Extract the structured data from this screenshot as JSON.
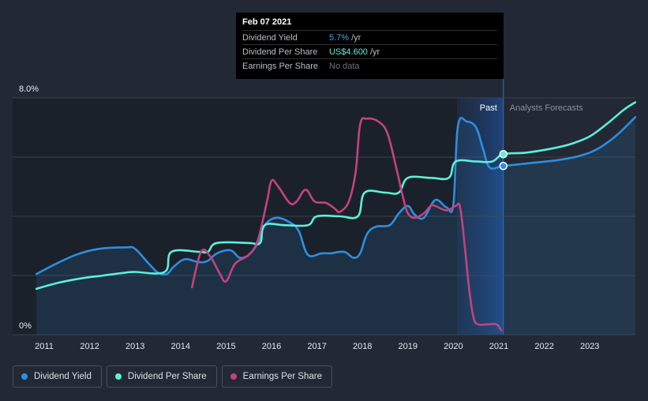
{
  "tooltip": {
    "date": "Feb 07 2021",
    "rows": [
      {
        "label": "Dividend Yield",
        "value": "5.7%",
        "unit": "/yr"
      },
      {
        "label": "Dividend Per Share",
        "value": "US$4.600",
        "unit": "/yr"
      },
      {
        "label": "Earnings Per Share",
        "value": "No data",
        "unit": ""
      }
    ]
  },
  "chart_data": {
    "type": "line",
    "y_tick_labels": [
      "8.0%",
      "0%"
    ],
    "ylim": [
      0,
      8
    ],
    "xlim": [
      2010.83,
      2024.0
    ],
    "x_tick_labels": [
      "2011",
      "2012",
      "2013",
      "2014",
      "2015",
      "2016",
      "2017",
      "2018",
      "2019",
      "2020",
      "2021",
      "2022",
      "2023"
    ],
    "region_labels": {
      "past": "Past",
      "forecast": "Analysts Forecasts"
    },
    "past_start": 2020.08,
    "forecast_start": 2021.1,
    "grid": true,
    "colors": {
      "dividend_yield": "#2d8ee0",
      "dividend_per_share": "#5cf0d8",
      "earnings_per_share": "#c4427e"
    },
    "series": [
      {
        "name": "Dividend Yield",
        "key": "dividend_yield",
        "fill": true,
        "points": [
          [
            2010.83,
            2.05
          ],
          [
            2011.2,
            2.35
          ],
          [
            2011.7,
            2.7
          ],
          [
            2012.2,
            2.9
          ],
          [
            2012.8,
            2.95
          ],
          [
            2013.0,
            2.9
          ],
          [
            2013.3,
            2.4
          ],
          [
            2013.5,
            2.1
          ],
          [
            2013.7,
            2.05
          ],
          [
            2013.85,
            2.3
          ],
          [
            2014.1,
            2.55
          ],
          [
            2014.4,
            2.45
          ],
          [
            2014.6,
            2.5
          ],
          [
            2014.8,
            2.75
          ],
          [
            2015.1,
            2.85
          ],
          [
            2015.3,
            2.6
          ],
          [
            2015.5,
            2.7
          ],
          [
            2015.7,
            3.1
          ],
          [
            2015.85,
            3.7
          ],
          [
            2016.1,
            3.95
          ],
          [
            2016.4,
            3.8
          ],
          [
            2016.6,
            3.5
          ],
          [
            2016.8,
            2.7
          ],
          [
            2017.1,
            2.75
          ],
          [
            2017.3,
            2.75
          ],
          [
            2017.6,
            2.8
          ],
          [
            2017.8,
            2.6
          ],
          [
            2017.95,
            2.75
          ],
          [
            2018.1,
            3.4
          ],
          [
            2018.3,
            3.65
          ],
          [
            2018.6,
            3.7
          ],
          [
            2018.8,
            4.1
          ],
          [
            2019.0,
            4.35
          ],
          [
            2019.15,
            4.05
          ],
          [
            2019.35,
            3.95
          ],
          [
            2019.6,
            4.55
          ],
          [
            2019.85,
            4.3
          ],
          [
            2020.0,
            4.4
          ],
          [
            2020.1,
            7.05
          ],
          [
            2020.3,
            7.2
          ],
          [
            2020.5,
            7.0
          ],
          [
            2020.65,
            6.3
          ],
          [
            2020.8,
            5.65
          ],
          [
            2021.1,
            5.7
          ],
          [
            2021.7,
            5.8
          ],
          [
            2022.3,
            5.9
          ],
          [
            2022.8,
            6.05
          ],
          [
            2023.2,
            6.3
          ],
          [
            2023.6,
            6.75
          ],
          [
            2024.0,
            7.35
          ]
        ]
      },
      {
        "name": "Dividend Per Share",
        "key": "dividend_per_share",
        "fill": false,
        "points": [
          [
            2010.83,
            1.55
          ],
          [
            2011.3,
            1.75
          ],
          [
            2011.8,
            1.9
          ],
          [
            2012.3,
            2.0
          ],
          [
            2012.8,
            2.1
          ],
          [
            2013.0,
            2.12
          ],
          [
            2013.65,
            2.12
          ],
          [
            2013.8,
            2.8
          ],
          [
            2014.4,
            2.8
          ],
          [
            2014.6,
            2.8
          ],
          [
            2014.8,
            3.1
          ],
          [
            2015.5,
            3.1
          ],
          [
            2015.75,
            3.1
          ],
          [
            2015.85,
            3.7
          ],
          [
            2016.3,
            3.7
          ],
          [
            2016.8,
            3.7
          ],
          [
            2017.0,
            4.0
          ],
          [
            2017.5,
            4.0
          ],
          [
            2017.9,
            4.0
          ],
          [
            2018.05,
            4.8
          ],
          [
            2018.5,
            4.8
          ],
          [
            2018.8,
            4.8
          ],
          [
            2019.0,
            5.3
          ],
          [
            2019.5,
            5.3
          ],
          [
            2019.9,
            5.3
          ],
          [
            2020.05,
            5.85
          ],
          [
            2020.5,
            5.85
          ],
          [
            2020.85,
            5.85
          ],
          [
            2021.1,
            6.1
          ],
          [
            2021.6,
            6.15
          ],
          [
            2022.2,
            6.3
          ],
          [
            2022.6,
            6.45
          ],
          [
            2023.0,
            6.7
          ],
          [
            2023.4,
            7.15
          ],
          [
            2023.75,
            7.6
          ],
          [
            2024.0,
            7.85
          ]
        ]
      },
      {
        "name": "Earnings Per Share",
        "key": "earnings_per_share",
        "fill": false,
        "points": [
          [
            2014.25,
            1.6
          ],
          [
            2014.45,
            2.8
          ],
          [
            2014.65,
            2.65
          ],
          [
            2014.85,
            2.1
          ],
          [
            2015.0,
            1.8
          ],
          [
            2015.2,
            2.4
          ],
          [
            2015.5,
            2.7
          ],
          [
            2015.7,
            3.2
          ],
          [
            2015.9,
            4.5
          ],
          [
            2016.0,
            5.2
          ],
          [
            2016.15,
            5.0
          ],
          [
            2016.4,
            4.45
          ],
          [
            2016.55,
            4.5
          ],
          [
            2016.75,
            4.9
          ],
          [
            2016.95,
            4.5
          ],
          [
            2017.2,
            4.45
          ],
          [
            2017.4,
            4.25
          ],
          [
            2017.5,
            4.15
          ],
          [
            2017.7,
            4.5
          ],
          [
            2017.85,
            5.5
          ],
          [
            2017.95,
            7.1
          ],
          [
            2018.1,
            7.3
          ],
          [
            2018.35,
            7.2
          ],
          [
            2018.55,
            6.8
          ],
          [
            2018.75,
            5.6
          ],
          [
            2018.9,
            4.6
          ],
          [
            2019.0,
            4.1
          ],
          [
            2019.15,
            3.95
          ],
          [
            2019.35,
            4.1
          ],
          [
            2019.5,
            4.35
          ],
          [
            2019.6,
            4.35
          ],
          [
            2019.85,
            4.2
          ],
          [
            2020.05,
            4.35
          ],
          [
            2020.15,
            4.3
          ],
          [
            2020.25,
            3.0
          ],
          [
            2020.35,
            1.5
          ],
          [
            2020.45,
            0.55
          ],
          [
            2020.55,
            0.35
          ],
          [
            2020.75,
            0.35
          ],
          [
            2020.95,
            0.35
          ],
          [
            2021.05,
            0.15
          ]
        ]
      }
    ],
    "highlight": {
      "x": 2021.1,
      "markers": [
        {
          "key": "dividend_per_share",
          "y": 6.1
        },
        {
          "key": "dividend_yield",
          "y": 5.7
        }
      ]
    }
  },
  "legend": [
    {
      "label": "Dividend Yield",
      "color": "#2d8ee0"
    },
    {
      "label": "Dividend Per Share",
      "color": "#5cf0d8"
    },
    {
      "label": "Earnings Per Share",
      "color": "#c4427e"
    }
  ]
}
